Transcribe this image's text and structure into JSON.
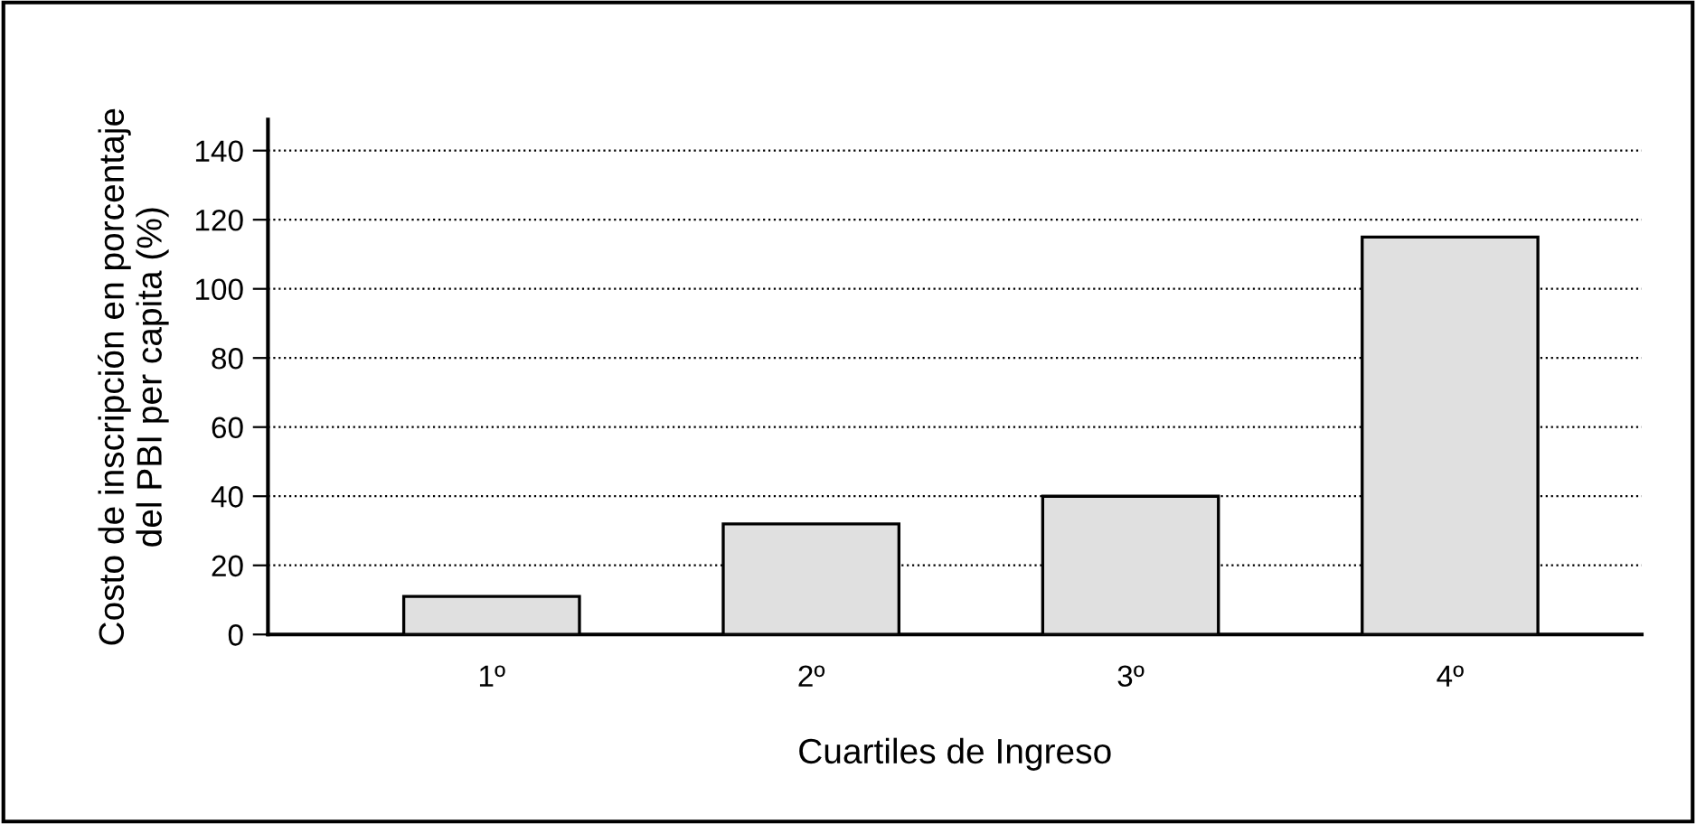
{
  "chart_data": {
    "type": "bar",
    "categories": [
      "1º",
      "2º",
      "3º",
      "4º"
    ],
    "values": [
      11,
      32,
      40,
      115
    ],
    "color": "#e0e0e0",
    "xlabel": "Cuartiles de Ingreso",
    "ylabel": "Costo de inscripción en porcentaje\ndel PBI per capita (%)",
    "ylim": [
      0,
      149
    ],
    "yticks": [
      0,
      20,
      40,
      60,
      80,
      100,
      120,
      140
    ],
    "grid": "y",
    "legend": false
  }
}
